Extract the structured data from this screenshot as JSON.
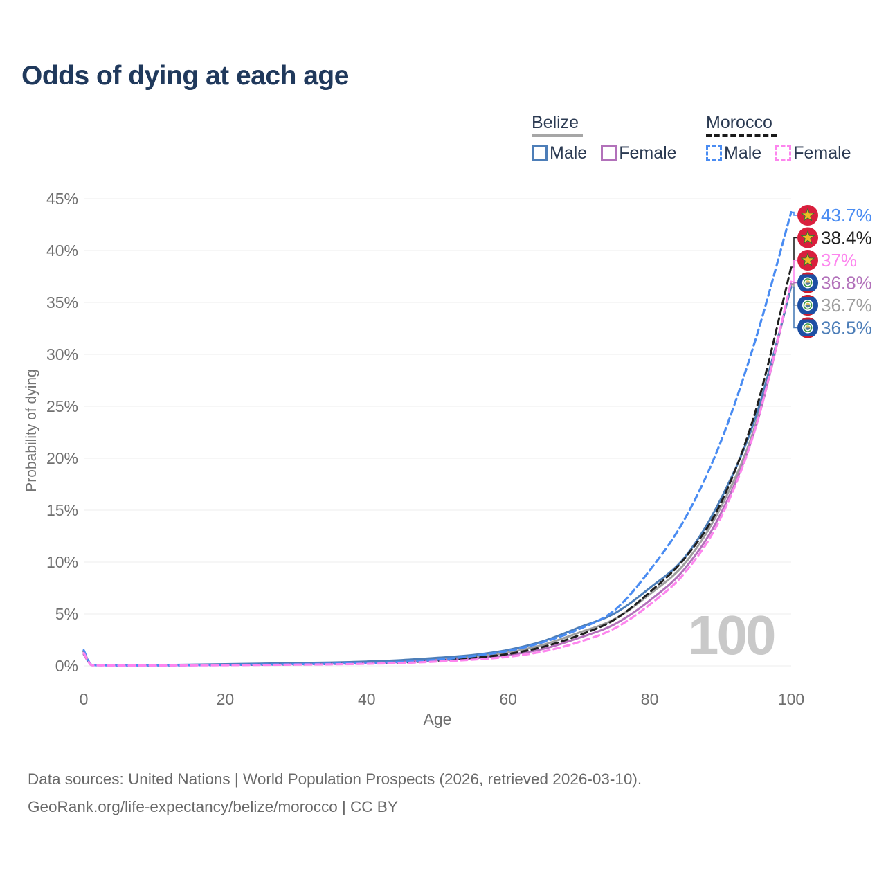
{
  "title": "Odds of dying at each age",
  "watermark": "100",
  "legend": {
    "belize": {
      "title": "Belize",
      "male": "Male",
      "female": "Female"
    },
    "morocco": {
      "title": "Morocco",
      "male": "Male",
      "female": "Female"
    }
  },
  "footer": {
    "line1": "Data sources: United Nations | World Population Prospects (2026, retrieved 2026-03-10).",
    "line2": "GeoRank.org/life-expectancy/belize/morocco | CC BY"
  },
  "chart_data": {
    "type": "line",
    "title": "Odds of dying at each age",
    "xlabel": "Age",
    "ylabel": "Probability of dying",
    "xlim": [
      0,
      100
    ],
    "ylim": [
      0,
      45
    ],
    "x_ticks": [
      0,
      20,
      40,
      60,
      80,
      100
    ],
    "y_ticks": [
      0,
      5,
      10,
      15,
      20,
      25,
      30,
      35,
      40,
      45
    ],
    "y_tick_suffix": "%",
    "grid": "horizontal",
    "legend_position": "top-right",
    "x": [
      0,
      1,
      2,
      5,
      10,
      15,
      20,
      25,
      30,
      35,
      40,
      45,
      50,
      55,
      60,
      65,
      70,
      75,
      80,
      85,
      90,
      95,
      100
    ],
    "series": [
      {
        "id": "belize-total",
        "name": "Belize",
        "country": "Belize",
        "sex": "Both",
        "color": "#9e9e9e",
        "dashed": false,
        "width": 3,
        "values": [
          1.2,
          0.14,
          0.09,
          0.07,
          0.07,
          0.1,
          0.14,
          0.18,
          0.22,
          0.28,
          0.36,
          0.48,
          0.66,
          0.9,
          1.3,
          2.05,
          3.2,
          4.5,
          6.9,
          9.9,
          15.2,
          23.3,
          36.7
        ]
      },
      {
        "id": "belize-female",
        "name": "Belize Female",
        "country": "Belize",
        "sex": "Female",
        "color": "#b271ba",
        "dashed": false,
        "width": 3,
        "values": [
          1.1,
          0.12,
          0.08,
          0.06,
          0.06,
          0.08,
          0.11,
          0.14,
          0.18,
          0.23,
          0.3,
          0.4,
          0.55,
          0.72,
          1.05,
          1.65,
          2.7,
          4.0,
          6.3,
          9.4,
          14.6,
          23.0,
          36.8
        ]
      },
      {
        "id": "belize-male",
        "name": "Belize Male",
        "country": "Belize",
        "sex": "Male",
        "color": "#4d7eb8",
        "dashed": false,
        "width": 3,
        "values": [
          1.3,
          0.15,
          0.1,
          0.08,
          0.08,
          0.12,
          0.17,
          0.22,
          0.27,
          0.33,
          0.42,
          0.56,
          0.78,
          1.05,
          1.55,
          2.4,
          3.7,
          5.05,
          7.5,
          10.5,
          16.0,
          24.0,
          36.5
        ]
      },
      {
        "id": "morocco-total",
        "name": "Morocco",
        "country": "Morocco",
        "sex": "Both",
        "color": "#1f1f1f",
        "dashed": true,
        "width": 3,
        "values": [
          1.4,
          0.11,
          0.07,
          0.05,
          0.05,
          0.06,
          0.09,
          0.11,
          0.14,
          0.18,
          0.24,
          0.33,
          0.5,
          0.78,
          1.15,
          1.85,
          2.95,
          4.45,
          7.1,
          10.4,
          15.6,
          24.6,
          38.4
        ]
      },
      {
        "id": "morocco-male",
        "name": "Morocco Male",
        "country": "Morocco",
        "sex": "Male",
        "color": "#4a8cf2",
        "dashed": true,
        "width": 3.2,
        "values": [
          1.5,
          0.12,
          0.07,
          0.05,
          0.05,
          0.07,
          0.1,
          0.13,
          0.16,
          0.2,
          0.27,
          0.38,
          0.6,
          0.95,
          1.45,
          2.3,
          3.55,
          5.35,
          9.2,
          14.2,
          21.5,
          31.5,
          43.7
        ]
      },
      {
        "id": "morocco-female",
        "name": "Morocco Female",
        "country": "Morocco",
        "sex": "Female",
        "color": "#fd85ee",
        "dashed": true,
        "width": 3.2,
        "values": [
          1.25,
          0.1,
          0.06,
          0.04,
          0.04,
          0.05,
          0.07,
          0.09,
          0.12,
          0.15,
          0.2,
          0.28,
          0.42,
          0.6,
          0.88,
          1.4,
          2.3,
          3.6,
          5.9,
          9.0,
          14.2,
          23.0,
          37.0
        ]
      }
    ],
    "end_labels": [
      {
        "series": "morocco-male",
        "text": "43.7%",
        "value": 43.7,
        "color": "#4a8cf2",
        "flag": "morocco"
      },
      {
        "series": "morocco-total",
        "text": "38.4%",
        "value": 38.4,
        "color": "#1f1f1f",
        "flag": "morocco"
      },
      {
        "series": "morocco-female",
        "text": "37%",
        "value": 37.0,
        "color": "#fd85ee",
        "flag": "morocco"
      },
      {
        "series": "belize-female",
        "text": "36.8%",
        "value": 36.8,
        "color": "#b271ba",
        "flag": "belize"
      },
      {
        "series": "belize-total",
        "text": "36.7%",
        "value": 36.7,
        "color": "#9e9e9e",
        "flag": "belize"
      },
      {
        "series": "belize-male",
        "text": "36.5%",
        "value": 36.5,
        "color": "#4d7eb8",
        "flag": "belize"
      }
    ],
    "hover_age": "100"
  }
}
